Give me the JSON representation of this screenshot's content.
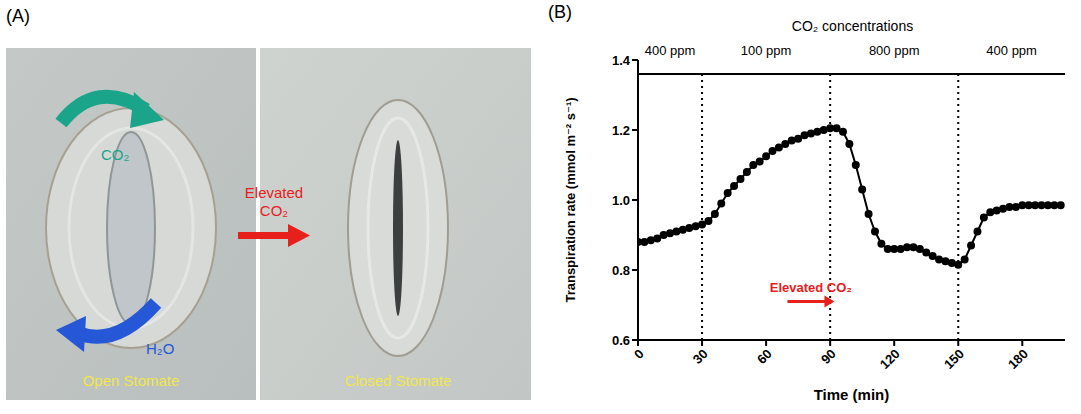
{
  "panel_a": {
    "label": "(A)",
    "co2_label": "CO₂",
    "h2o_label": "H₂O",
    "arrow_label": "Elevated CO₂",
    "left_caption": "Open Stomate",
    "right_caption": "Closed Stomate"
  },
  "chart_data": {
    "type": "line",
    "panel_label": "(B)",
    "title": "CO₂ concentrations",
    "x_label": "Time (min)",
    "y_label": "Transpiration rate (mmol m⁻² s⁻¹)",
    "x": [
      0,
      3,
      6,
      9,
      12,
      15,
      18,
      21,
      24,
      27,
      30,
      33,
      36,
      39,
      42,
      45,
      48,
      51,
      54,
      57,
      60,
      63,
      66,
      69,
      72,
      75,
      78,
      81,
      84,
      87,
      90,
      93,
      96,
      99,
      102,
      105,
      108,
      111,
      114,
      117,
      120,
      123,
      126,
      129,
      132,
      135,
      138,
      141,
      144,
      147,
      150,
      153,
      156,
      159,
      162,
      165,
      168,
      171,
      174,
      177,
      180,
      183,
      186,
      189,
      192,
      195,
      198
    ],
    "values": [
      0.88,
      0.88,
      0.885,
      0.89,
      0.9,
      0.905,
      0.91,
      0.915,
      0.92,
      0.925,
      0.93,
      0.94,
      0.96,
      0.99,
      1.02,
      1.04,
      1.06,
      1.08,
      1.1,
      1.11,
      1.125,
      1.14,
      1.15,
      1.16,
      1.17,
      1.175,
      1.185,
      1.19,
      1.195,
      1.2,
      1.205,
      1.205,
      1.195,
      1.16,
      1.1,
      1.03,
      0.96,
      0.91,
      0.875,
      0.86,
      0.86,
      0.86,
      0.865,
      0.865,
      0.86,
      0.85,
      0.84,
      0.83,
      0.825,
      0.82,
      0.815,
      0.83,
      0.87,
      0.91,
      0.95,
      0.965,
      0.97,
      0.975,
      0.98,
      0.98,
      0.985,
      0.985,
      0.985,
      0.985,
      0.985,
      0.985,
      0.985
    ],
    "color": "#000000",
    "marker": "circle",
    "xlim": [
      0,
      200
    ],
    "xticks": [
      0,
      30,
      60,
      90,
      120,
      150,
      180
    ],
    "ylim": [
      0.6,
      1.4
    ],
    "yticks": [
      0.6,
      0.8,
      {
        "value": 1,
        "label": "1.0"
      },
      1.2,
      1.4
    ],
    "phases": [
      {
        "start": 0,
        "end": 30,
        "label": "400 ppm"
      },
      {
        "start": 30,
        "end": 90,
        "label": "100 ppm"
      },
      {
        "start": 90,
        "end": 150,
        "label": "800 ppm"
      },
      {
        "start": 150,
        "end": 200,
        "label": "400 ppm"
      }
    ],
    "phase_line_y": 1.36,
    "annotation": {
      "text": "Elevated CO₂",
      "x_start": 70,
      "x_end": 92,
      "y": 0.71,
      "color": "#e8201c"
    }
  }
}
